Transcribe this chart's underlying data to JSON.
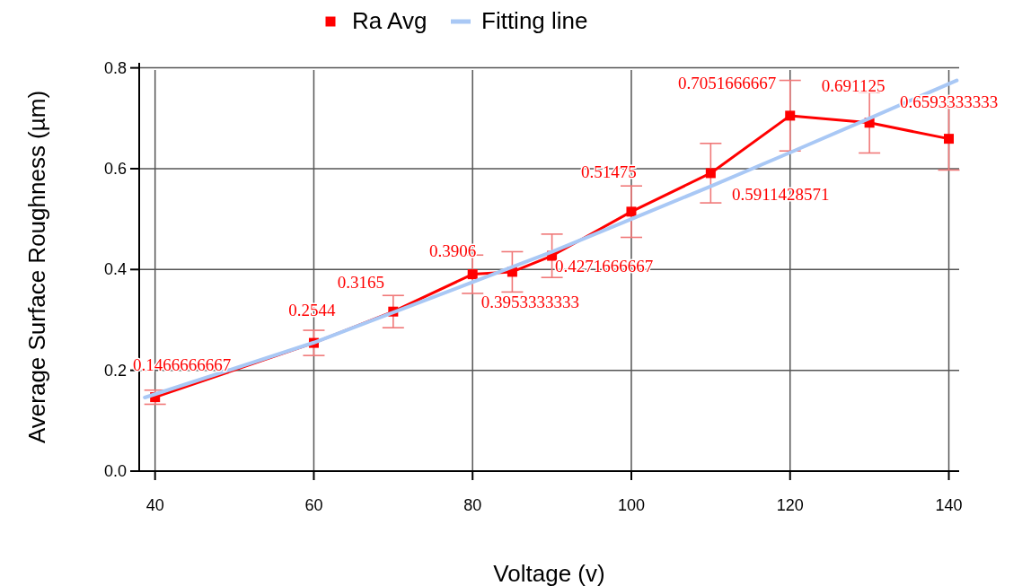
{
  "chart_data": {
    "type": "line",
    "xlabel": "Voltage (v)",
    "ylabel": "Average Surface Roughness (µm)",
    "xlim": [
      38,
      141.3
    ],
    "xticks": [
      40,
      60,
      80,
      100,
      120,
      140
    ],
    "ylim": [
      0,
      0.81
    ],
    "yticks": [
      {
        "value": 0,
        "label": "0.0"
      },
      0.2,
      0.4,
      0.6,
      0.8
    ],
    "grid": true,
    "legend": "top",
    "marker": "square",
    "line_style": "solid",
    "series": [
      {
        "name": "Ra Avg",
        "color": "#ff0000",
        "x": [
          40,
          60,
          70,
          80,
          85,
          90,
          100,
          110,
          120,
          130,
          140
        ],
        "values": [
          0.1466666667,
          0.2544,
          0.3165,
          0.3906,
          0.3953333333,
          0.4271666667,
          0.51475,
          0.5911428571,
          0.7051666667,
          0.691125,
          0.6593333333
        ],
        "errors": [
          0.014,
          0.025,
          0.032,
          0.038,
          0.04,
          0.043,
          0.051,
          0.059,
          0.07,
          0.06,
          0.062
        ],
        "data_labels": true
      },
      {
        "name": "Fitting line",
        "type": "line",
        "color": "#a9c8f5",
        "marker": "none",
        "x": [
          38.7,
          60,
          80,
          90,
          100,
          110,
          120,
          130,
          141
        ],
        "values": [
          0.146,
          0.255,
          0.375,
          0.435,
          0.5,
          0.565,
          0.632,
          0.7,
          0.775
        ]
      }
    ]
  }
}
